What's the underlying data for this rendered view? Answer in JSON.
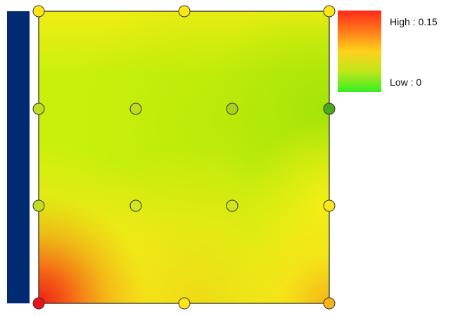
{
  "legend": {
    "high_label": "High : 0.15",
    "low_label": "Low : 0",
    "high_color": "#ff2a1a",
    "mid_color": "#ffd21a",
    "low_color": "#35ee22"
  },
  "colors": {
    "support_bar": "#002a72",
    "plate_base": "#c9f00d",
    "plate_border": "#222222",
    "node_stroke": "#333333"
  },
  "scale": {
    "min": 0,
    "max": 0.15
  },
  "nodes": [
    {
      "name": "node-r0-c0",
      "value": 0.085,
      "color": "#ffe619"
    },
    {
      "name": "node-r0-c1",
      "value": 0.085,
      "color": "#ffe619"
    },
    {
      "name": "node-r0-c2",
      "value": 0.085,
      "color": "#ffe619"
    },
    {
      "name": "node-r1-c0",
      "value": 0.04,
      "color": "#bfdc20"
    },
    {
      "name": "node-r1-c1",
      "value": 0.04,
      "color": "#bfdc20"
    },
    {
      "name": "node-r1-c2",
      "value": 0.04,
      "color": "#a9d21c"
    },
    {
      "name": "node-r1-c3",
      "value": 0.005,
      "color": "#4aa81a"
    },
    {
      "name": "node-r2-c0",
      "value": 0.045,
      "color": "#c2dc20"
    },
    {
      "name": "node-r2-c1",
      "value": 0.05,
      "color": "#d2e61d"
    },
    {
      "name": "node-r2-c2",
      "value": 0.05,
      "color": "#d2e61d"
    },
    {
      "name": "node-r2-c3",
      "value": 0.085,
      "color": "#ffe619"
    },
    {
      "name": "node-r3-c0",
      "value": 0.15,
      "color": "#e8141a"
    },
    {
      "name": "node-r3-c1",
      "value": 0.085,
      "color": "#ffe619"
    },
    {
      "name": "node-r3-c2",
      "value": 0.105,
      "color": "#f8b416"
    }
  ]
}
